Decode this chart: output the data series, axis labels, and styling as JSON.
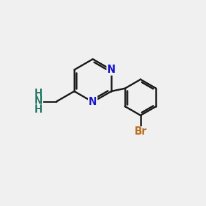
{
  "background_color": "#f0f0f0",
  "bond_color": "#1a1a1a",
  "bond_width": 1.8,
  "N_color": "#1515cc",
  "NH2_color": "#2a7a6a",
  "Br_color": "#b87020",
  "font_size_atom": 10.5,
  "fig_size": [
    3.0,
    3.0
  ],
  "dpi": 100,
  "xlim": [
    0,
    10
  ],
  "ylim": [
    0,
    10
  ]
}
